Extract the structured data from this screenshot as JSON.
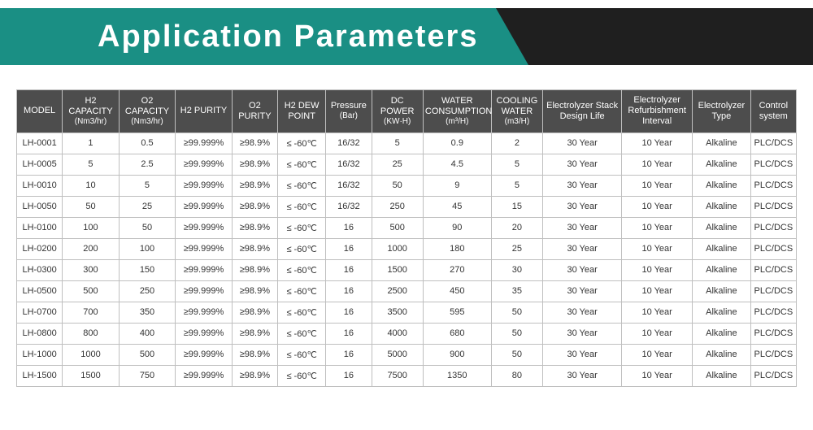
{
  "banner": {
    "title": "Application Parameters",
    "teal_color": "#1a8f84",
    "dark_color": "#1f1f1f",
    "title_color": "#ffffff"
  },
  "table": {
    "header_bg": "#4d4d4d",
    "header_color": "#ffffff",
    "border_color": "#bfbfbf",
    "cell_bg": "#ffffff",
    "cell_color": "#333333",
    "columns": [
      {
        "label": "MODEL",
        "sub": ""
      },
      {
        "label": "H2 CAPACITY",
        "sub": "(Nm3/hr)"
      },
      {
        "label": "O2 CAPACITY",
        "sub": "(Nm3/hr)"
      },
      {
        "label": "H2 PURITY",
        "sub": ""
      },
      {
        "label": "O2 PURITY",
        "sub": ""
      },
      {
        "label": "H2 DEW POINT",
        "sub": ""
      },
      {
        "label": "Pressure",
        "sub": "(Bar)"
      },
      {
        "label": "DC POWER",
        "sub": "(KW·H)"
      },
      {
        "label": "WATER CONSUMPTION",
        "sub": "(m³/H)"
      },
      {
        "label": "COOLING WATER",
        "sub": "(m3/H)"
      },
      {
        "label": "Electrolyzer Stack Design Life",
        "sub": ""
      },
      {
        "label": "Electrolyzer Refurbishment Interval",
        "sub": ""
      },
      {
        "label": "Electrolyzer Type",
        "sub": ""
      },
      {
        "label": "Control system",
        "sub": ""
      }
    ],
    "rows": [
      [
        "LH-0001",
        "1",
        "0.5",
        "≥99.999%",
        "≥98.9%",
        "≤ -60℃",
        "16/32",
        "5",
        "0.9",
        "2",
        "30 Year",
        "10 Year",
        "Alkaline",
        "PLC/DCS"
      ],
      [
        "LH-0005",
        "5",
        "2.5",
        "≥99.999%",
        "≥98.9%",
        "≤ -60℃",
        "16/32",
        "25",
        "4.5",
        "5",
        "30 Year",
        "10 Year",
        "Alkaline",
        "PLC/DCS"
      ],
      [
        "LH-0010",
        "10",
        "5",
        "≥99.999%",
        "≥98.9%",
        "≤ -60℃",
        "16/32",
        "50",
        "9",
        "5",
        "30 Year",
        "10 Year",
        "Alkaline",
        "PLC/DCS"
      ],
      [
        "LH-0050",
        "50",
        "25",
        "≥99.999%",
        "≥98.9%",
        "≤ -60℃",
        "16/32",
        "250",
        "45",
        "15",
        "30 Year",
        "10 Year",
        "Alkaline",
        "PLC/DCS"
      ],
      [
        "LH-0100",
        "100",
        "50",
        "≥99.999%",
        "≥98.9%",
        "≤ -60℃",
        "16",
        "500",
        "90",
        "20",
        "30 Year",
        "10 Year",
        "Alkaline",
        "PLC/DCS"
      ],
      [
        "LH-0200",
        "200",
        "100",
        "≥99.999%",
        "≥98.9%",
        "≤ -60℃",
        "16",
        "1000",
        "180",
        "25",
        "30 Year",
        "10 Year",
        "Alkaline",
        "PLC/DCS"
      ],
      [
        "LH-0300",
        "300",
        "150",
        "≥99.999%",
        "≥98.9%",
        "≤ -60℃",
        "16",
        "1500",
        "270",
        "30",
        "30 Year",
        "10 Year",
        "Alkaline",
        "PLC/DCS"
      ],
      [
        "LH-0500",
        "500",
        "250",
        "≥99.999%",
        "≥98.9%",
        "≤ -60℃",
        "16",
        "2500",
        "450",
        "35",
        "30 Year",
        "10 Year",
        "Alkaline",
        "PLC/DCS"
      ],
      [
        "LH-0700",
        "700",
        "350",
        "≥99.999%",
        "≥98.9%",
        "≤ -60℃",
        "16",
        "3500",
        "595",
        "50",
        "30 Year",
        "10 Year",
        "Alkaline",
        "PLC/DCS"
      ],
      [
        "LH-0800",
        "800",
        "400",
        "≥99.999%",
        "≥98.9%",
        "≤ -60℃",
        "16",
        "4000",
        "680",
        "50",
        "30 Year",
        "10 Year",
        "Alkaline",
        "PLC/DCS"
      ],
      [
        "LH-1000",
        "1000",
        "500",
        "≥99.999%",
        "≥98.9%",
        "≤ -60℃",
        "16",
        "5000",
        "900",
        "50",
        "30 Year",
        "10 Year",
        "Alkaline",
        "PLC/DCS"
      ],
      [
        "LH-1500",
        "1500",
        "750",
        "≥99.999%",
        "≥98.9%",
        "≤ -60℃",
        "16",
        "7500",
        "1350",
        "80",
        "30 Year",
        "10 Year",
        "Alkaline",
        "PLC/DCS"
      ]
    ]
  }
}
